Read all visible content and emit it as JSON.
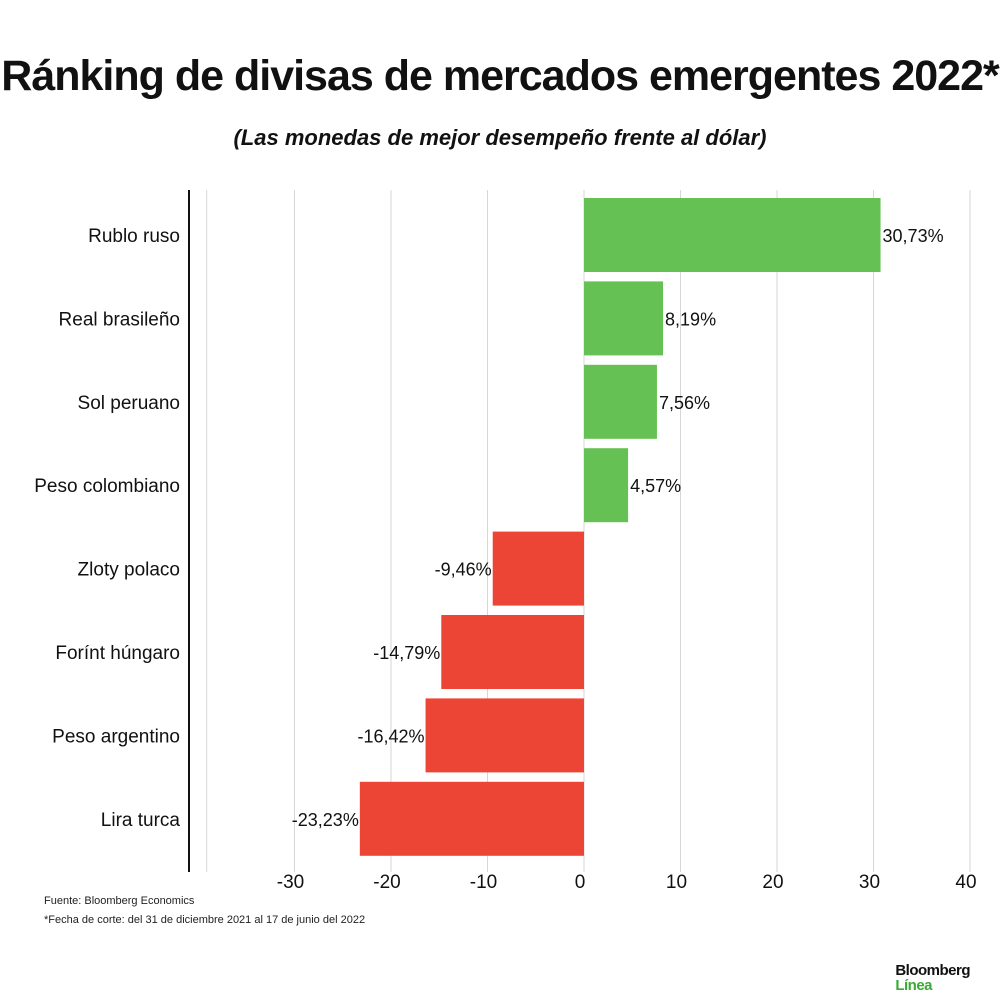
{
  "colors": {
    "positive": "#65c153",
    "negative": "#ec4536",
    "grid": "#d6d6d6",
    "axis": "#111111"
  },
  "chart_data": {
    "type": "bar",
    "orientation": "horizontal",
    "title": "Ránking de divisas de mercados emergentes 2022*",
    "subtitle": "(Las monedas de mejor desempeño frente al dólar)",
    "categories": [
      "Rublo ruso",
      "Real brasileño",
      "Sol peruano",
      "Peso colombiano",
      "Zloty polaco",
      "Forínt húngaro",
      "Peso argentino",
      "Lira turca"
    ],
    "values": [
      30.73,
      8.19,
      7.56,
      4.57,
      -9.46,
      -14.79,
      -16.42,
      -23.23
    ],
    "data_labels": [
      "30,73%",
      "8,19%",
      "7,56%",
      "4,57%",
      "-9,46%",
      "-14,79%",
      "-16,42%",
      "-23,23%"
    ],
    "xlim": [
      -40,
      40
    ],
    "xticks": [
      -30,
      -20,
      -10,
      0,
      10,
      20,
      30,
      40
    ],
    "grid": true,
    "legend": "none"
  },
  "footer": {
    "source": "Fuente: Bloomberg Economics",
    "note": "*Fecha de corte: del 31 de diciembre 2021 al 17 de junio del 2022"
  },
  "logo": {
    "line1": "Bloomberg",
    "line2": "Línea"
  }
}
